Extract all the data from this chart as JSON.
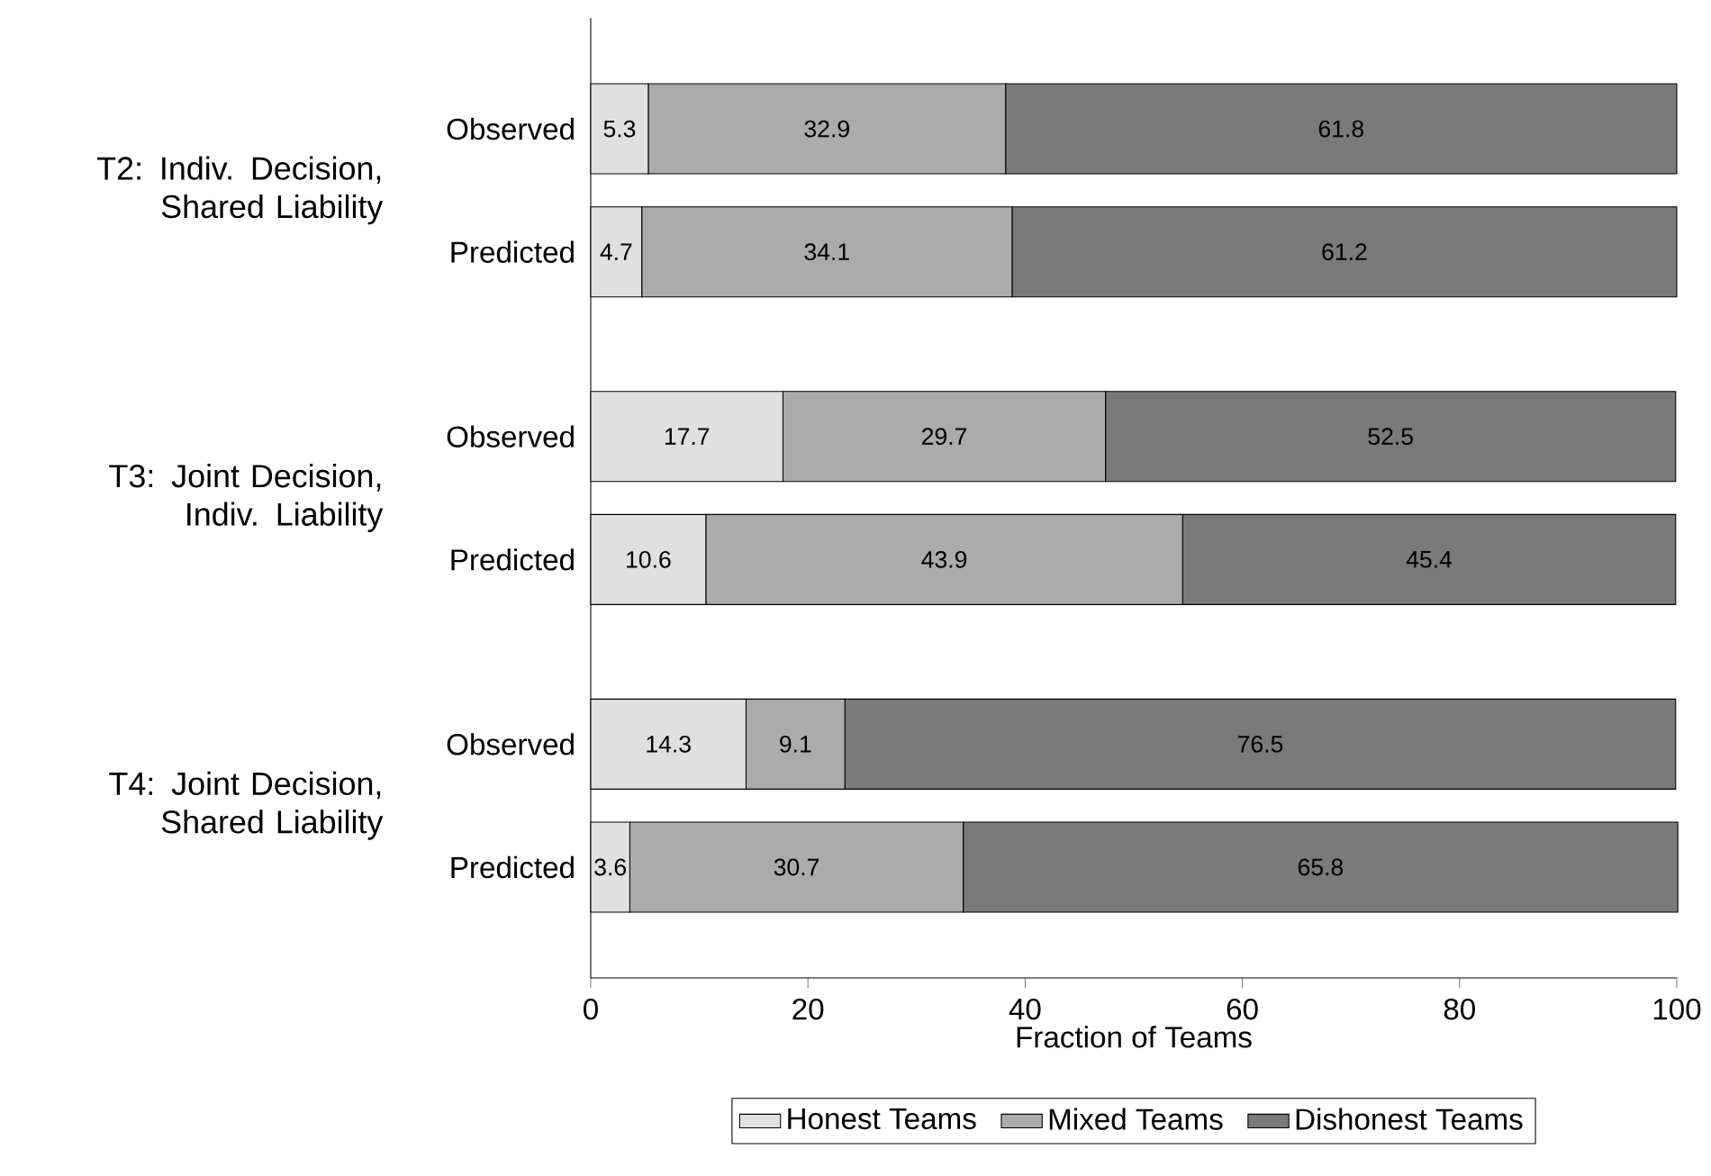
{
  "chart_data": {
    "type": "bar",
    "orientation": "horizontal",
    "stacked": true,
    "data_labels": true,
    "legend": "bottom",
    "categories": [
      "Observed",
      "Predicted",
      "Observed",
      "Predicted",
      "Observed",
      "Predicted"
    ],
    "annotations": [
      "T2: Indiv. Decision, Shared Liability",
      "T3: Joint Decision, Indiv. Liability",
      "T4: Joint Decision, Shared Liability"
    ],
    "xlabel": "Fraction of Teams",
    "xlim": [
      0,
      100
    ],
    "xticks": [
      0,
      20,
      40,
      60,
      80,
      100
    ],
    "series": [
      {
        "name": "Honest Teams",
        "color": "#e0e0e0",
        "values": [
          5.3,
          4.7,
          17.7,
          10.6,
          14.3,
          3.6
        ]
      },
      {
        "name": "Mixed Teams",
        "color": "#ababab",
        "values": [
          32.9,
          34.1,
          29.7,
          43.9,
          9.1,
          30.7
        ]
      },
      {
        "name": "Dishonest Teams",
        "color": "#7a7a7a",
        "values": [
          61.8,
          61.2,
          52.5,
          45.4,
          76.5,
          65.8
        ]
      }
    ]
  }
}
